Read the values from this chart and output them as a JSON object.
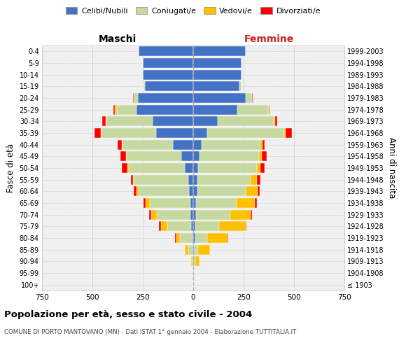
{
  "age_groups": [
    "100+",
    "95-99",
    "90-94",
    "85-89",
    "80-84",
    "75-79",
    "70-74",
    "65-69",
    "60-64",
    "55-59",
    "50-54",
    "45-49",
    "40-44",
    "35-39",
    "30-34",
    "25-29",
    "20-24",
    "15-19",
    "10-14",
    "5-9",
    "0-4"
  ],
  "birth_years": [
    "≤ 1903",
    "1904-1908",
    "1909-1913",
    "1914-1918",
    "1919-1923",
    "1924-1928",
    "1929-1933",
    "1934-1938",
    "1939-1943",
    "1944-1948",
    "1949-1953",
    "1954-1958",
    "1959-1963",
    "1964-1968",
    "1969-1973",
    "1974-1978",
    "1979-1983",
    "1984-1988",
    "1989-1993",
    "1994-1998",
    "1999-2003"
  ],
  "male": {
    "single": [
      0,
      0,
      0,
      5,
      5,
      10,
      15,
      15,
      20,
      25,
      40,
      60,
      100,
      185,
      200,
      280,
      275,
      240,
      250,
      250,
      270
    ],
    "married": [
      0,
      0,
      5,
      20,
      60,
      120,
      165,
      200,
      250,
      270,
      280,
      270,
      250,
      270,
      230,
      100,
      20,
      5,
      0,
      0,
      0
    ],
    "widowed": [
      0,
      0,
      5,
      15,
      20,
      30,
      30,
      20,
      10,
      5,
      5,
      5,
      5,
      5,
      5,
      10,
      0,
      0,
      0,
      0,
      0
    ],
    "divorced": [
      0,
      0,
      0,
      0,
      5,
      10,
      10,
      10,
      15,
      10,
      30,
      25,
      20,
      30,
      15,
      5,
      5,
      0,
      0,
      0,
      0
    ]
  },
  "female": {
    "single": [
      0,
      0,
      5,
      5,
      10,
      10,
      15,
      15,
      20,
      20,
      25,
      30,
      40,
      70,
      120,
      220,
      260,
      230,
      240,
      240,
      260
    ],
    "married": [
      0,
      0,
      5,
      20,
      60,
      120,
      170,
      200,
      240,
      265,
      290,
      295,
      295,
      380,
      280,
      150,
      30,
      10,
      0,
      0,
      0
    ],
    "widowed": [
      0,
      5,
      20,
      60,
      100,
      130,
      100,
      90,
      60,
      30,
      20,
      15,
      10,
      10,
      5,
      5,
      0,
      0,
      0,
      0,
      0
    ],
    "divorced": [
      0,
      0,
      0,
      0,
      5,
      5,
      5,
      10,
      10,
      20,
      20,
      25,
      10,
      30,
      10,
      5,
      5,
      0,
      0,
      0,
      0
    ]
  },
  "colors": {
    "single": "#4472c4",
    "married": "#c5d9a0",
    "widowed": "#ffc000",
    "divorced": "#ff0000"
  },
  "xlim": 750,
  "title": "Popolazione per età, sesso e stato civile - 2004",
  "subtitle": "COMUNE DI PORTO MANTOVANO (MN) - Dati ISTAT 1° gennaio 2004 - Elaborazione TUTTITALIA.IT",
  "ylabel_left": "Fasce di età",
  "ylabel_right": "Anni di nascita",
  "xlabel_left": "Maschi",
  "xlabel_right": "Femmine",
  "legend_labels": [
    "Celibi/Nubili",
    "Coniugati/e",
    "Vedovi/e",
    "Divorziati/e"
  ],
  "bg_color": "#f0f0f0",
  "grid_color": "#cccccc"
}
